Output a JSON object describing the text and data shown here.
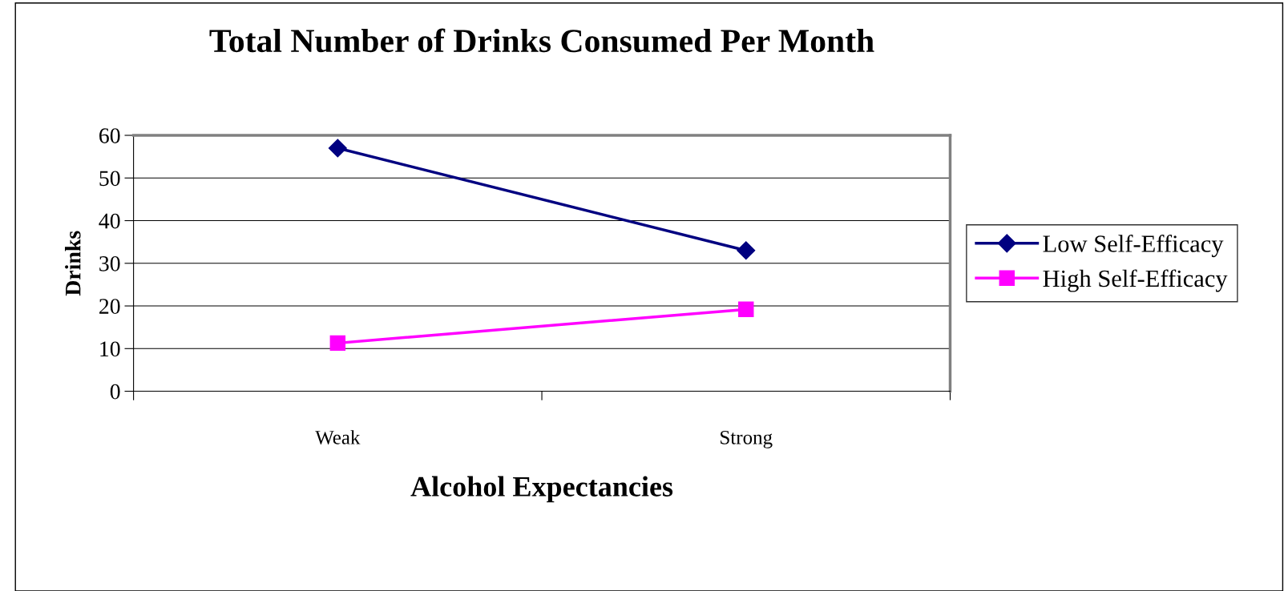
{
  "chart_data": {
    "type": "line",
    "title": "Total Number of Drinks Consumed Per Month",
    "xlabel": "Alcohol Expectancies",
    "ylabel": "Drinks",
    "categories": [
      "Weak",
      "Strong"
    ],
    "series": [
      {
        "name": "Low Self-Efficacy",
        "color": "#000080",
        "values": [
          57,
          33
        ],
        "marker": "diamond"
      },
      {
        "name": "High Self-Efficacy",
        "color": "#ff00ff",
        "values": [
          11.3,
          19.2
        ],
        "marker": "square"
      }
    ],
    "ylim": [
      0,
      60
    ],
    "yticks": [
      0,
      10,
      20,
      30,
      40,
      50,
      60
    ],
    "grid": "y",
    "legend": "right",
    "line_style": "solid"
  }
}
